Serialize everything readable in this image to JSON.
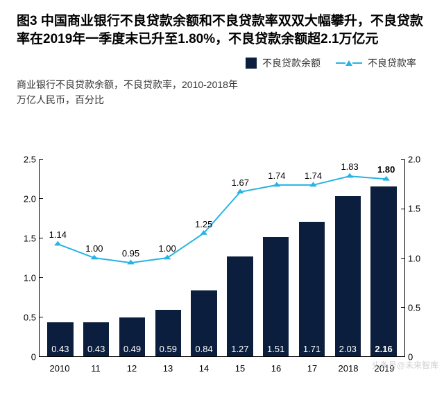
{
  "title": "图3 中国商业银行不良贷款余额和不良贷款率双双大幅攀升，不良贷款率在2019年一季度末已升至1.80%，不良贷款余额超2.1万亿元",
  "subtitle": "商业银行不良贷款余额，不良贷款率，2010-2018年",
  "units": "万亿人民币，百分比",
  "legend": {
    "bar": "不良贷款余额",
    "line": "不良贷款率"
  },
  "chart": {
    "type": "bar+line",
    "categories": [
      "2010",
      "11",
      "12",
      "13",
      "14",
      "15",
      "16",
      "17",
      "2018",
      "2019"
    ],
    "bar_values": [
      0.43,
      0.43,
      0.49,
      0.59,
      0.84,
      1.27,
      1.51,
      1.71,
      2.03,
      2.16
    ],
    "bar_labels": [
      "0.43",
      "0.43",
      "0.49",
      "0.59",
      "0.84",
      "1.27",
      "1.51",
      "1.71",
      "2.03",
      "2.16"
    ],
    "line_values": [
      1.14,
      1.0,
      0.95,
      1.0,
      1.25,
      1.67,
      1.74,
      1.74,
      1.83,
      1.8
    ],
    "line_labels": [
      "1.14",
      "1.00",
      "0.95",
      "1.00",
      "1.25",
      "1.67",
      "1.74",
      "1.74",
      "1.83",
      "1.80"
    ],
    "bar_color": "#0b1e3d",
    "line_color": "#26b3e6",
    "marker": "triangle",
    "y_left": {
      "min": 0,
      "max": 2.5,
      "ticks": [
        0,
        0.5,
        1.0,
        1.5,
        2.0,
        2.5
      ],
      "labels": [
        "0",
        "0.5",
        "1.0",
        "1.5",
        "2.0",
        "2.5"
      ]
    },
    "y_right": {
      "min": 0,
      "max": 2.0,
      "ticks": [
        0,
        0.5,
        1.0,
        1.5,
        2.0
      ],
      "labels": [
        "0",
        "0.5",
        "1.0",
        "1.5",
        "2.0"
      ]
    },
    "background_color": "#ffffff",
    "axis_color": "#000000",
    "title_fontsize": 19,
    "label_fontsize": 13
  },
  "watermark": "头条号@未来智库"
}
